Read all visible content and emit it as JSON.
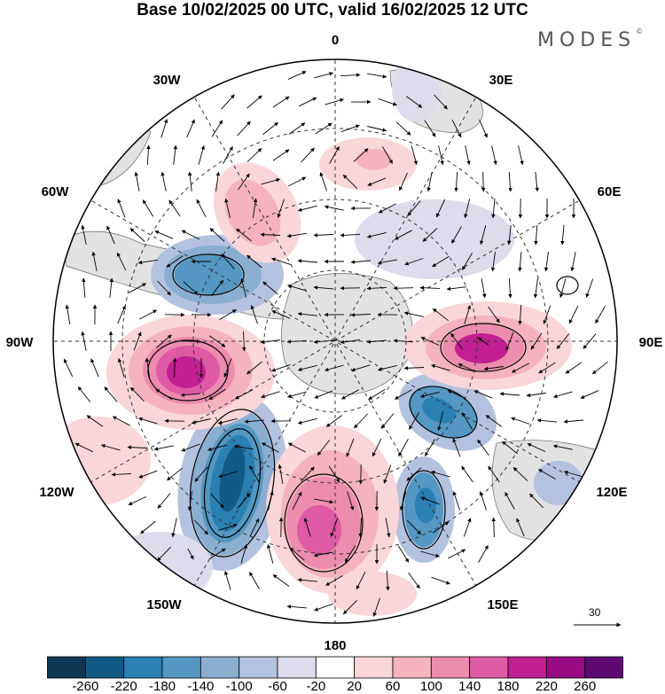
{
  "title": "Base 10/02/2025 00 UTC, valid 16/02/2025 12 UTC",
  "brand": {
    "name": "MODES",
    "mark": "©"
  },
  "longitude_labels": [
    {
      "id": "0",
      "text": "0"
    },
    {
      "id": "30E",
      "text": "30E"
    },
    {
      "id": "60E",
      "text": "60E"
    },
    {
      "id": "90E",
      "text": "90E"
    },
    {
      "id": "120E",
      "text": "120E"
    },
    {
      "id": "150E",
      "text": "150E"
    },
    {
      "id": "180",
      "text": "180"
    },
    {
      "id": "150W",
      "text": "150W"
    },
    {
      "id": "120W",
      "text": "120W"
    },
    {
      "id": "90W",
      "text": "90W"
    },
    {
      "id": "60W",
      "text": "60W"
    },
    {
      "id": "30W",
      "text": "30W"
    }
  ],
  "wind_scale": {
    "label": "30"
  },
  "colorbar": {
    "ticks": [
      "-260",
      "-220",
      "-180",
      "-140",
      "-100",
      "-60",
      "-20",
      "20",
      "60",
      "100",
      "140",
      "180",
      "220",
      "260"
    ],
    "colors": [
      "#0e3954",
      "#115a85",
      "#2a7fb3",
      "#5497c2",
      "#8aaed0",
      "#b3c2de",
      "#dcdcec",
      "#ffffff",
      "#f9d6d9",
      "#f4b3be",
      "#ec8caf",
      "#df5aa4",
      "#c21f93",
      "#990b85",
      "#5e0a72"
    ]
  },
  "palette": {
    "grid": "#333333",
    "land": "#e3e3e3",
    "coast": "#555555"
  }
}
